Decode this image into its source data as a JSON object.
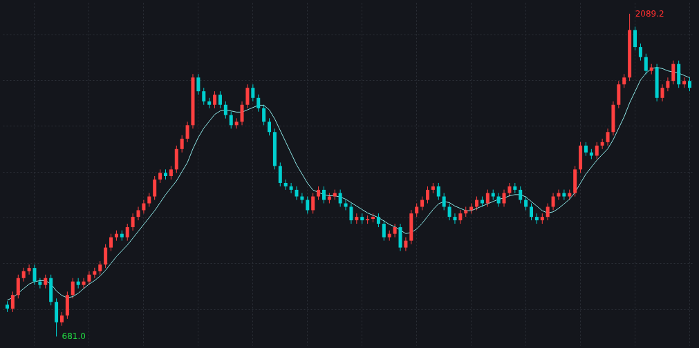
{
  "chart_data": {
    "type": "candlestick",
    "grid": true,
    "categories": [
      null,
      null,
      null,
      null,
      null,
      null,
      null,
      null,
      null,
      null,
      null,
      null,
      null,
      null,
      null,
      null,
      null,
      null,
      null,
      null,
      null,
      null,
      null,
      null,
      null,
      null,
      null,
      null,
      null,
      null,
      null,
      null,
      null,
      null,
      null,
      null,
      null,
      null,
      null,
      null,
      null,
      null,
      null,
      null,
      null,
      null,
      null,
      null,
      null,
      null,
      null,
      null,
      null,
      null,
      null,
      null,
      null,
      null,
      null,
      null,
      null,
      null,
      null,
      null,
      null,
      null,
      null,
      null,
      null,
      null,
      null,
      null,
      null,
      null,
      null,
      null,
      null,
      null,
      null,
      null,
      null,
      null,
      null,
      null,
      null,
      null,
      null,
      null,
      null,
      null,
      null,
      null,
      null,
      null,
      null,
      null,
      null,
      null,
      null,
      null,
      null,
      null,
      null,
      null,
      null,
      null,
      null,
      null,
      null,
      null,
      null,
      null,
      null,
      null,
      null,
      null,
      null,
      null,
      null,
      null,
      null,
      null,
      null,
      null,
      null,
      null
    ],
    "ohlc": [
      [
        820,
        835,
        788,
        803
      ],
      [
        803,
        877,
        788,
        862
      ],
      [
        862,
        951,
        847,
        936
      ],
      [
        936,
        981,
        921,
        966
      ],
      [
        966,
        995,
        951,
        980
      ],
      [
        980,
        995,
        906,
        921
      ],
      [
        921,
        936,
        891,
        906
      ],
      [
        906,
        951,
        891,
        936
      ],
      [
        936,
        951,
        817,
        832
      ],
      [
        832,
        847,
        681.0,
        743
      ],
      [
        743,
        788,
        728,
        773
      ],
      [
        773,
        877,
        758,
        862
      ],
      [
        862,
        936,
        847,
        921
      ],
      [
        921,
        936,
        891,
        906
      ],
      [
        906,
        936,
        891,
        921
      ],
      [
        921,
        966,
        906,
        951
      ],
      [
        951,
        981,
        936,
        966
      ],
      [
        966,
        1010,
        951,
        995
      ],
      [
        995,
        1084,
        980,
        1069
      ],
      [
        1069,
        1129,
        1054,
        1114
      ],
      [
        1114,
        1144,
        1099,
        1129
      ],
      [
        1129,
        1144,
        1099,
        1114
      ],
      [
        1114,
        1173,
        1099,
        1158
      ],
      [
        1158,
        1218,
        1143,
        1203
      ],
      [
        1203,
        1247,
        1188,
        1232
      ],
      [
        1232,
        1277,
        1217,
        1262
      ],
      [
        1262,
        1307,
        1247,
        1292
      ],
      [
        1292,
        1381,
        1277,
        1366
      ],
      [
        1366,
        1410,
        1351,
        1395
      ],
      [
        1395,
        1410,
        1366,
        1381
      ],
      [
        1381,
        1425,
        1366,
        1410
      ],
      [
        1410,
        1514,
        1395,
        1499
      ],
      [
        1499,
        1559,
        1484,
        1544
      ],
      [
        1544,
        1618,
        1529,
        1603
      ],
      [
        1603,
        1826,
        1588,
        1811
      ],
      [
        1811,
        1826,
        1736,
        1751
      ],
      [
        1751,
        1766,
        1692,
        1707
      ],
      [
        1707,
        1722,
        1677,
        1692
      ],
      [
        1692,
        1751,
        1677,
        1736
      ],
      [
        1736,
        1751,
        1677,
        1692
      ],
      [
        1692,
        1707,
        1632,
        1647
      ],
      [
        1647,
        1662,
        1588,
        1603
      ],
      [
        1603,
        1633,
        1588,
        1618
      ],
      [
        1618,
        1707,
        1603,
        1692
      ],
      [
        1692,
        1781,
        1677,
        1766
      ],
      [
        1766,
        1781,
        1707,
        1722
      ],
      [
        1722,
        1737,
        1662,
        1677
      ],
      [
        1677,
        1692,
        1603,
        1618
      ],
      [
        1618,
        1633,
        1558,
        1573
      ],
      [
        1573,
        1588,
        1410,
        1425
      ],
      [
        1425,
        1440,
        1336,
        1351
      ],
      [
        1351,
        1366,
        1321,
        1336
      ],
      [
        1336,
        1351,
        1306,
        1321
      ],
      [
        1321,
        1336,
        1277,
        1292
      ],
      [
        1292,
        1307,
        1262,
        1277
      ],
      [
        1277,
        1292,
        1217,
        1232
      ],
      [
        1232,
        1307,
        1217,
        1292
      ],
      [
        1292,
        1336,
        1277,
        1321
      ],
      [
        1321,
        1336,
        1262,
        1277
      ],
      [
        1277,
        1307,
        1262,
        1292
      ],
      [
        1292,
        1322,
        1277,
        1307
      ],
      [
        1307,
        1322,
        1247,
        1262
      ],
      [
        1262,
        1277,
        1232,
        1247
      ],
      [
        1247,
        1262,
        1173,
        1188
      ],
      [
        1188,
        1218,
        1173,
        1203
      ],
      [
        1203,
        1218,
        1173,
        1188
      ],
      [
        1188,
        1209,
        1173,
        1194
      ],
      [
        1194,
        1218,
        1179,
        1203
      ],
      [
        1203,
        1218,
        1158,
        1173
      ],
      [
        1173,
        1188,
        1099,
        1114
      ],
      [
        1114,
        1144,
        1099,
        1129
      ],
      [
        1129,
        1173,
        1114,
        1158
      ],
      [
        1158,
        1173,
        1054,
        1069
      ],
      [
        1069,
        1114,
        1054,
        1099
      ],
      [
        1099,
        1233,
        1084,
        1218
      ],
      [
        1218,
        1262,
        1203,
        1247
      ],
      [
        1247,
        1292,
        1232,
        1277
      ],
      [
        1277,
        1336,
        1262,
        1321
      ],
      [
        1321,
        1351,
        1306,
        1336
      ],
      [
        1336,
        1351,
        1277,
        1292
      ],
      [
        1292,
        1307,
        1232,
        1247
      ],
      [
        1247,
        1262,
        1188,
        1203
      ],
      [
        1203,
        1218,
        1173,
        1188
      ],
      [
        1188,
        1233,
        1173,
        1218
      ],
      [
        1218,
        1247,
        1203,
        1232
      ],
      [
        1232,
        1262,
        1217,
        1247
      ],
      [
        1247,
        1292,
        1232,
        1277
      ],
      [
        1277,
        1292,
        1247,
        1262
      ],
      [
        1262,
        1322,
        1247,
        1307
      ],
      [
        1307,
        1322,
        1277,
        1292
      ],
      [
        1292,
        1307,
        1247,
        1262
      ],
      [
        1262,
        1322,
        1247,
        1307
      ],
      [
        1307,
        1351,
        1292,
        1336
      ],
      [
        1336,
        1351,
        1306,
        1321
      ],
      [
        1321,
        1336,
        1262,
        1277
      ],
      [
        1277,
        1292,
        1232,
        1247
      ],
      [
        1247,
        1262,
        1188,
        1203
      ],
      [
        1203,
        1218,
        1173,
        1188
      ],
      [
        1188,
        1218,
        1173,
        1203
      ],
      [
        1203,
        1262,
        1188,
        1247
      ],
      [
        1247,
        1307,
        1232,
        1292
      ],
      [
        1292,
        1322,
        1277,
        1307
      ],
      [
        1307,
        1322,
        1277,
        1292
      ],
      [
        1292,
        1322,
        1277,
        1307
      ],
      [
        1307,
        1425,
        1292,
        1410
      ],
      [
        1410,
        1529,
        1395,
        1514
      ],
      [
        1514,
        1529,
        1469,
        1484
      ],
      [
        1484,
        1499,
        1455,
        1470
      ],
      [
        1470,
        1529,
        1455,
        1514
      ],
      [
        1514,
        1544,
        1499,
        1529
      ],
      [
        1529,
        1588,
        1514,
        1573
      ],
      [
        1573,
        1707,
        1558,
        1692
      ],
      [
        1692,
        1796,
        1677,
        1781
      ],
      [
        1781,
        1826,
        1766,
        1811
      ],
      [
        1811,
        2089.2,
        1796,
        2018
      ],
      [
        2018,
        2033,
        1929,
        1944
      ],
      [
        1944,
        1959,
        1885,
        1900
      ],
      [
        1900,
        1915,
        1825,
        1840
      ],
      [
        1840,
        1870,
        1825,
        1855
      ],
      [
        1855,
        1870,
        1707,
        1722
      ],
      [
        1722,
        1781,
        1707,
        1766
      ],
      [
        1766,
        1811,
        1751,
        1796
      ],
      [
        1796,
        1885,
        1781,
        1870
      ],
      [
        1870,
        1885,
        1766,
        1781
      ],
      [
        1781,
        1811,
        1766,
        1796
      ],
      [
        1796,
        1811,
        1751,
        1766
      ]
    ],
    "colors": [
      "#00d0d0",
      "#ff4040",
      "#ff4040",
      "#ff4040",
      "#ff4040",
      "#00d0d0",
      "#00d0d0",
      "#ff4040",
      "#00d0d0",
      "#00d0d0",
      "#ff4040",
      "#ff4040",
      "#ff4040",
      "#00d0d0",
      "#ff4040",
      "#ff4040",
      "#ff4040",
      "#ff4040",
      "#ff4040",
      "#ff4040",
      "#ff4040",
      "#00d0d0",
      "#ff4040",
      "#ff4040",
      "#ff4040",
      "#ff4040",
      "#ff4040",
      "#ff4040",
      "#ff4040",
      "#00d0d0",
      "#ff4040",
      "#ff4040",
      "#ff4040",
      "#ff4040",
      "#ff4040",
      "#00d0d0",
      "#00d0d0",
      "#00d0d0",
      "#ff4040",
      "#00d0d0",
      "#00d0d0",
      "#00d0d0",
      "#ff4040",
      "#ff4040",
      "#ff4040",
      "#00d0d0",
      "#00d0d0",
      "#00d0d0",
      "#00d0d0",
      "#00d0d0",
      "#00d0d0",
      "#00d0d0",
      "#00d0d0",
      "#00d0d0",
      "#00d0d0",
      "#00d0d0",
      "#ff4040",
      "#ff4040",
      "#00d0d0",
      "#ff4040",
      "#ff4040",
      "#00d0d0",
      "#00d0d0",
      "#00d0d0",
      "#ff4040",
      "#00d0d0",
      "#ff4040",
      "#ff4040",
      "#00d0d0",
      "#00d0d0",
      "#ff4040",
      "#ff4040",
      "#00d0d0",
      "#ff4040",
      "#ff4040",
      "#ff4040",
      "#ff4040",
      "#ff4040",
      "#ff4040",
      "#00d0d0",
      "#00d0d0",
      "#00d0d0",
      "#00d0d0",
      "#ff4040",
      "#ff4040",
      "#ff4040",
      "#ff4040",
      "#00d0d0",
      "#ff4040",
      "#00d0d0",
      "#00d0d0",
      "#ff4040",
      "#ff4040",
      "#00d0d0",
      "#00d0d0",
      "#00d0d0",
      "#00d0d0",
      "#00d0d0",
      "#ff4040",
      "#ff4040",
      "#ff4040",
      "#ff4040",
      "#00d0d0",
      "#ff4040",
      "#ff4040",
      "#ff4040",
      "#00d0d0",
      "#00d0d0",
      "#ff4040",
      "#ff4040",
      "#ff4040",
      "#ff4040",
      "#ff4040",
      "#ff4040",
      "#ff4040",
      "#00d0d0",
      "#00d0d0",
      "#00d0d0",
      "#ff4040",
      "#00d0d0",
      "#ff4040",
      "#ff4040",
      "#ff4040",
      "#00d0d0",
      "#ff4040",
      "#00d0d0"
    ],
    "series": [
      {
        "type": "line",
        "color": "#8ee8e8",
        "values": [
          840,
          850,
          870,
          890,
          910,
          920,
          925,
          925,
          910,
          880,
          860,
          850,
          855,
          870,
          890,
          910,
          925,
          945,
          970,
          1000,
          1030,
          1055,
          1080,
          1110,
          1140,
          1170,
          1200,
          1230,
          1265,
          1300,
          1330,
          1360,
          1400,
          1440,
          1500,
          1550,
          1590,
          1620,
          1650,
          1665,
          1670,
          1665,
          1660,
          1660,
          1670,
          1680,
          1690,
          1690,
          1670,
          1630,
          1580,
          1530,
          1480,
          1430,
          1390,
          1350,
          1320,
          1310,
          1300,
          1295,
          1295,
          1290,
          1280,
          1265,
          1250,
          1235,
          1220,
          1210,
          1200,
          1185,
          1170,
          1160,
          1145,
          1130,
          1135,
          1150,
          1175,
          1205,
          1235,
          1260,
          1270,
          1265,
          1250,
          1240,
          1230,
          1230,
          1240,
          1250,
          1260,
          1270,
          1280,
          1285,
          1295,
          1300,
          1300,
          1290,
          1270,
          1250,
          1230,
          1220,
          1225,
          1240,
          1260,
          1280,
          1310,
          1350,
          1390,
          1420,
          1450,
          1475,
          1500,
          1540,
          1590,
          1640,
          1700,
          1750,
          1800,
          1830,
          1850,
          1855,
          1850,
          1840,
          1835,
          1830,
          1820,
          1810
        ]
      }
    ],
    "annotations": [
      "2089.2",
      "681.0"
    ]
  }
}
